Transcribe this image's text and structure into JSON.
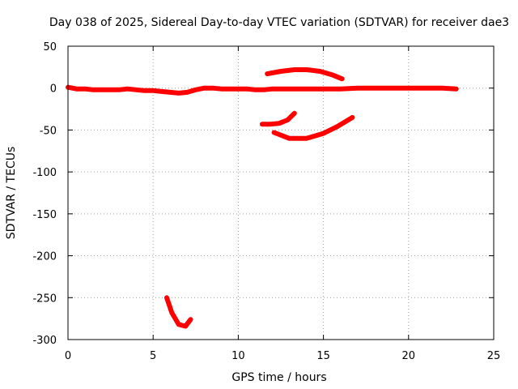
{
  "chart_data": {
    "type": "scatter",
    "title": "Day 038 of 2025, Sidereal Day-to-day VTEC variation (SDTVAR) for receiver dae3",
    "xlabel": "GPS time / hours",
    "ylabel": "SDTVAR / TECUs",
    "xlim": [
      0,
      25
    ],
    "ylim": [
      -300,
      50
    ],
    "xticks": [
      0,
      5,
      10,
      15,
      20,
      25
    ],
    "xtick_labels": [
      "0",
      "5",
      "10",
      "15",
      "20",
      "25"
    ],
    "yticks": [
      50,
      0,
      -50,
      -100,
      -150,
      -200,
      -250,
      -300
    ],
    "ytick_labels": [
      "50",
      "0",
      "-50",
      "-100",
      "-150",
      "-200",
      "-250",
      "-300"
    ],
    "grid": true,
    "marker_color": "#ff0000",
    "series": [
      {
        "name": "main-trace",
        "x": [
          0,
          0.5,
          1,
          1.5,
          2,
          2.5,
          3,
          3.5,
          4,
          4.5,
          5,
          5.5,
          6,
          6.5,
          7,
          7.5,
          8,
          8.5,
          9,
          9.5,
          10,
          10.5,
          11,
          11.5,
          12,
          13,
          14,
          15,
          16,
          17,
          18,
          19,
          20,
          21,
          22,
          22.8
        ],
        "y": [
          1,
          -1,
          -1,
          -2,
          -2,
          -2,
          -2,
          -1,
          -2,
          -3,
          -3,
          -4,
          -5,
          -6,
          -5,
          -2,
          0,
          0,
          -1,
          -1,
          -1,
          -1,
          -2,
          -2,
          -1,
          -1,
          -1,
          -1,
          -1,
          0,
          0,
          0,
          0,
          0,
          0,
          -1
        ]
      },
      {
        "name": "arc-upper",
        "x": [
          11.7,
          12.5,
          13.3,
          14,
          14.8,
          15.5,
          16.1
        ],
        "y": [
          17,
          20,
          22,
          22,
          20,
          16,
          11
        ]
      },
      {
        "name": "arc-middle-left",
        "x": [
          11.4,
          11.9,
          12.4,
          12.9,
          13.3
        ],
        "y": [
          -43,
          -43,
          -42,
          -38,
          -30
        ]
      },
      {
        "name": "arc-middle",
        "x": [
          12.1,
          13,
          14,
          15,
          15.8,
          16.7
        ],
        "y": [
          -53,
          -60,
          -60,
          -54,
          -46,
          -35
        ]
      },
      {
        "name": "arc-bottom",
        "x": [
          5.8,
          6.1,
          6.5,
          6.9,
          7.2
        ],
        "y": [
          -250,
          -268,
          -282,
          -284,
          -276
        ]
      }
    ]
  }
}
